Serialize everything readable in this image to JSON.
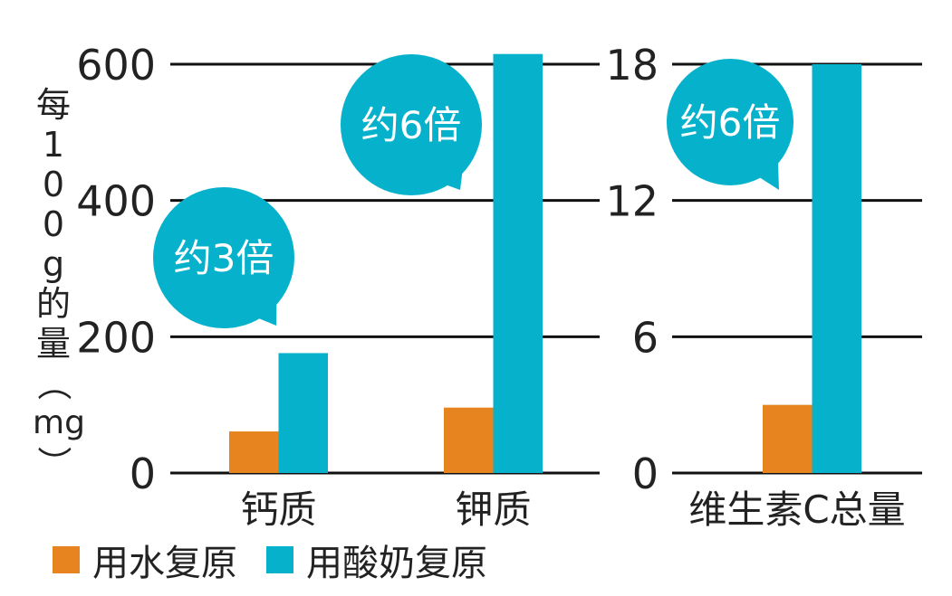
{
  "colors": {
    "water": "#e8841f",
    "yogurt": "#06b1cb",
    "grid": "#111111",
    "bubble": "#06b1cb"
  },
  "y_label_chars": [
    "每",
    "1",
    "0",
    "0",
    "g",
    "的",
    "量",
    "（",
    "mg",
    "）"
  ],
  "legend": [
    {
      "label": "用水复原",
      "color": "#e8841f"
    },
    {
      "label": "用酸奶复原",
      "color": "#06b1cb"
    }
  ],
  "chart_data": [
    {
      "type": "bar",
      "ylabel": "每100g的量（mg）",
      "ylim": [
        0,
        600
      ],
      "yticks": [
        "0",
        "200",
        "400",
        "600"
      ],
      "grid": true,
      "categories": [
        "钙质",
        "钾质"
      ],
      "series": [
        {
          "name": "用水复原",
          "values": [
            61,
            96
          ]
        },
        {
          "name": "用酸奶复原",
          "values": [
            176,
            615
          ]
        }
      ],
      "annotations": [
        "约3倍",
        "约6倍"
      ]
    },
    {
      "type": "bar",
      "ylim": [
        0,
        18
      ],
      "yticks": [
        "0",
        "6",
        "12",
        "18"
      ],
      "grid": true,
      "categories": [
        "维生素C总量"
      ],
      "series": [
        {
          "name": "用水复原",
          "values": [
            3
          ]
        },
        {
          "name": "用酸奶复原",
          "values": [
            18
          ]
        }
      ],
      "annotations": [
        "约6倍"
      ]
    }
  ]
}
